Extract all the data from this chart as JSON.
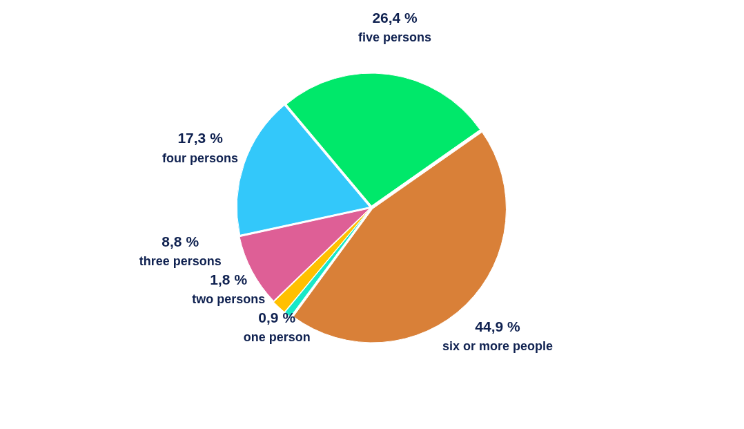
{
  "chart_data": {
    "type": "pie",
    "categories": [
      "five persons",
      "six or more people",
      "one person",
      "two persons",
      "three persons",
      "four persons"
    ],
    "values": [
      26.4,
      44.9,
      0.9,
      1.8,
      8.8,
      17.3
    ],
    "colors": [
      "#00e86a",
      "#d98038",
      "#18e8c8",
      "#ffc000",
      "#de5f96",
      "#33c8fa"
    ],
    "value_labels": [
      "26,4 %",
      "44,9 %",
      "0,9 %",
      "1,8 %",
      "8,8 %",
      "17,3 %"
    ],
    "legend": false
  }
}
